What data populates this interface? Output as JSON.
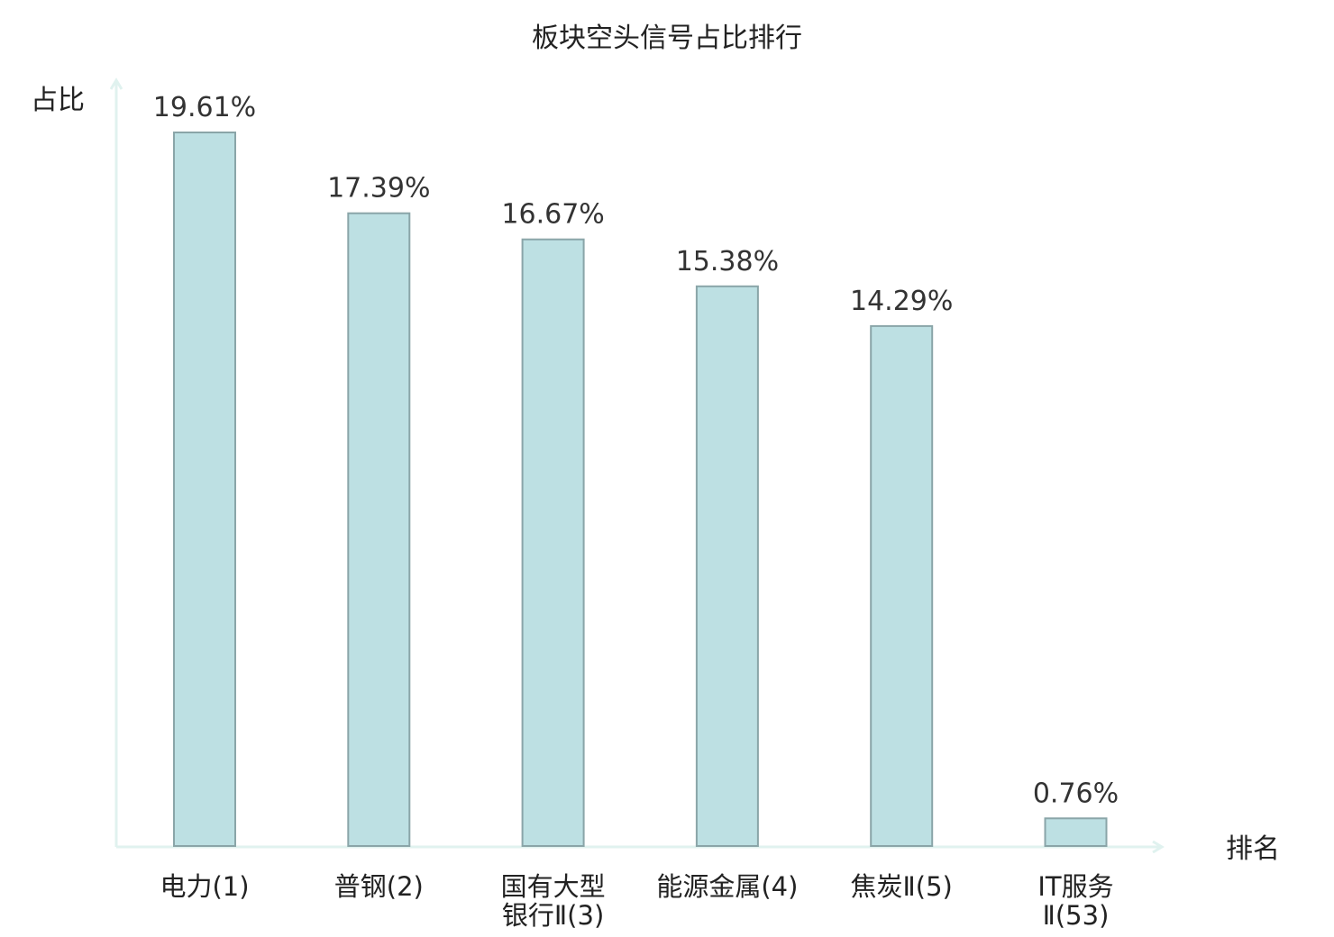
{
  "chart_data": {
    "type": "bar",
    "title": "板块空头信号占比排行",
    "ylabel": "占比",
    "xlabel": "排名",
    "categories": [
      {
        "lines": [
          "电力(1)"
        ],
        "highlight": false
      },
      {
        "lines": [
          "普钢(2)"
        ],
        "highlight": false
      },
      {
        "lines": [
          "国有大型",
          "银行Ⅱ(3)"
        ],
        "highlight": false
      },
      {
        "lines": [
          "能源金属(4)"
        ],
        "highlight": false
      },
      {
        "lines": [
          "焦炭Ⅱ(5)"
        ],
        "highlight": false
      },
      {
        "lines": [
          "IT服务",
          "Ⅱ(53)"
        ],
        "highlight": true
      }
    ],
    "values": [
      19.61,
      17.39,
      16.67,
      15.38,
      14.29,
      0.76
    ],
    "value_labels": [
      "19.61%",
      "17.39%",
      "16.67%",
      "15.38%",
      "14.29%",
      "0.76%"
    ],
    "ylim": [
      0,
      19.61
    ],
    "grid": false,
    "legend": "none",
    "colors": {
      "bar_fill": "#bde0e3",
      "bar_stroke": "#8aa5a8",
      "axis": "#e0f2ef",
      "text": "#222222",
      "highlight_text": "#e41a1c"
    }
  }
}
